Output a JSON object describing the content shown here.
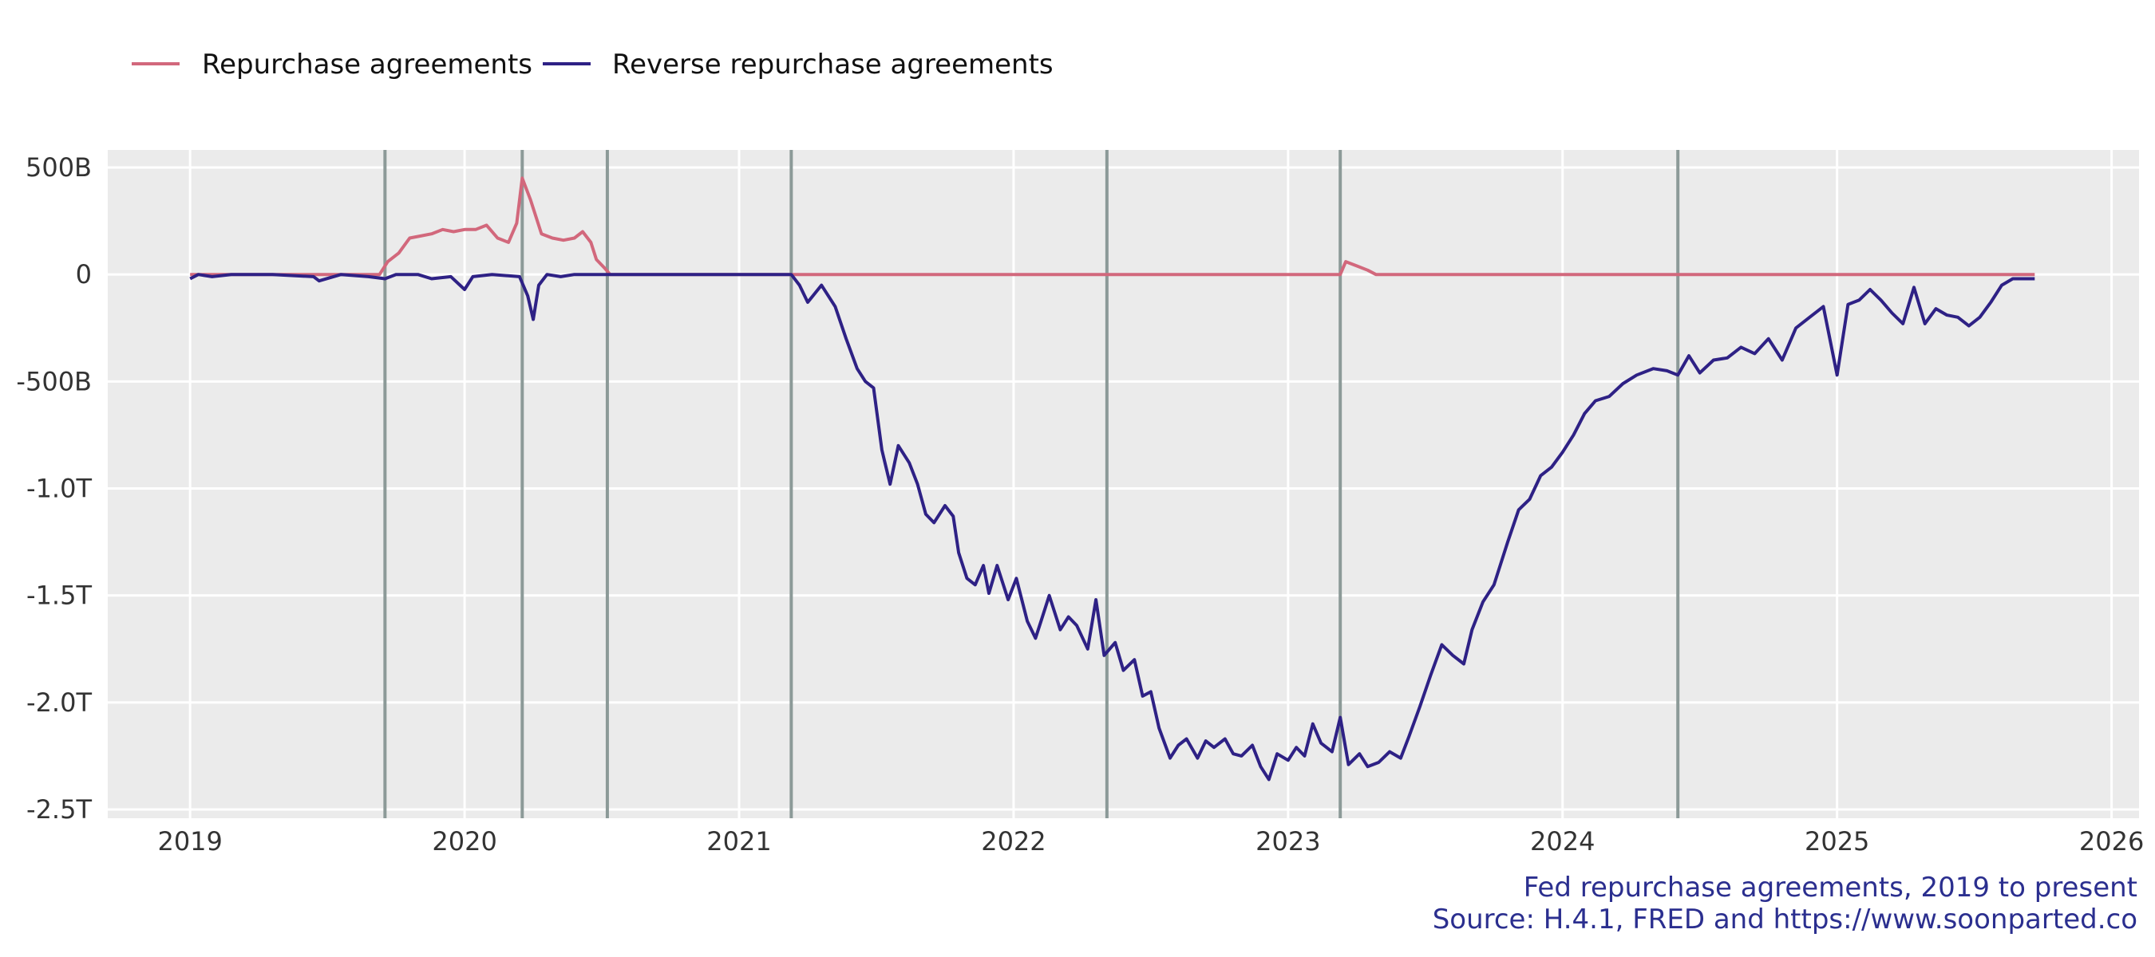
{
  "chart_data": {
    "type": "line",
    "title": "",
    "xlabel": "",
    "ylabel": "",
    "x_unit": "year",
    "xlim": [
      2018.7,
      2026.1
    ],
    "ylim": [
      -2.5,
      0.5
    ],
    "y_unit": "trillions of dollars",
    "x_ticks": [
      2019,
      2020,
      2021,
      2022,
      2023,
      2024,
      2025,
      2026
    ],
    "x_tick_labels": [
      "2019",
      "2020",
      "2021",
      "2022",
      "2023",
      "2024",
      "2025",
      "2026"
    ],
    "y_ticks": [
      0.5,
      0,
      -0.5,
      -1.0,
      -1.5,
      -2.0,
      -2.5
    ],
    "y_tick_labels": [
      "500B",
      "0",
      "-500B",
      "-1.0T",
      "-1.5T",
      "-2.0T",
      "-2.5T"
    ],
    "grid": true,
    "legend_position": "top-left",
    "event_lines": [
      2019.71,
      2020.21,
      2020.52,
      2021.19,
      2022.34,
      2023.19,
      2024.42
    ],
    "series": [
      {
        "name": "Repurchase agreements",
        "color": "#d2687c",
        "points": [
          [
            2019.0,
            0
          ],
          [
            2019.69,
            0
          ],
          [
            2019.72,
            0.06
          ],
          [
            2019.76,
            0.1
          ],
          [
            2019.8,
            0.17
          ],
          [
            2019.84,
            0.18
          ],
          [
            2019.88,
            0.19
          ],
          [
            2019.92,
            0.21
          ],
          [
            2019.96,
            0.2
          ],
          [
            2020.0,
            0.21
          ],
          [
            2020.04,
            0.21
          ],
          [
            2020.08,
            0.23
          ],
          [
            2020.12,
            0.17
          ],
          [
            2020.16,
            0.15
          ],
          [
            2020.19,
            0.24
          ],
          [
            2020.21,
            0.45
          ],
          [
            2020.24,
            0.35
          ],
          [
            2020.28,
            0.19
          ],
          [
            2020.32,
            0.17
          ],
          [
            2020.36,
            0.16
          ],
          [
            2020.4,
            0.17
          ],
          [
            2020.43,
            0.2
          ],
          [
            2020.46,
            0.15
          ],
          [
            2020.48,
            0.07
          ],
          [
            2020.51,
            0.03
          ],
          [
            2020.53,
            0
          ],
          [
            2023.19,
            0
          ],
          [
            2023.21,
            0.06
          ],
          [
            2023.25,
            0.04
          ],
          [
            2023.29,
            0.02
          ],
          [
            2023.32,
            0
          ],
          [
            2025.72,
            0
          ]
        ]
      },
      {
        "name": "Reverse repurchase agreements",
        "color": "#2e2185",
        "points": [
          [
            2019.0,
            -0.02
          ],
          [
            2019.03,
            0
          ],
          [
            2019.08,
            -0.01
          ],
          [
            2019.15,
            0
          ],
          [
            2019.3,
            0
          ],
          [
            2019.45,
            -0.01
          ],
          [
            2019.47,
            -0.03
          ],
          [
            2019.55,
            0
          ],
          [
            2019.65,
            -0.01
          ],
          [
            2019.71,
            -0.02
          ],
          [
            2019.75,
            0
          ],
          [
            2019.83,
            0
          ],
          [
            2019.88,
            -0.02
          ],
          [
            2019.95,
            -0.01
          ],
          [
            2020.0,
            -0.07
          ],
          [
            2020.03,
            -0.01
          ],
          [
            2020.1,
            0
          ],
          [
            2020.2,
            -0.01
          ],
          [
            2020.23,
            -0.1
          ],
          [
            2020.25,
            -0.21
          ],
          [
            2020.27,
            -0.05
          ],
          [
            2020.3,
            0
          ],
          [
            2020.35,
            -0.01
          ],
          [
            2020.4,
            0
          ],
          [
            2020.55,
            0
          ],
          [
            2021.0,
            0
          ],
          [
            2021.19,
            0
          ],
          [
            2021.22,
            -0.05
          ],
          [
            2021.25,
            -0.13
          ],
          [
            2021.3,
            -0.05
          ],
          [
            2021.35,
            -0.15
          ],
          [
            2021.39,
            -0.3
          ],
          [
            2021.43,
            -0.44
          ],
          [
            2021.46,
            -0.5
          ],
          [
            2021.49,
            -0.53
          ],
          [
            2021.52,
            -0.82
          ],
          [
            2021.55,
            -0.98
          ],
          [
            2021.58,
            -0.8
          ],
          [
            2021.62,
            -0.88
          ],
          [
            2021.65,
            -0.98
          ],
          [
            2021.68,
            -1.12
          ],
          [
            2021.71,
            -1.16
          ],
          [
            2021.75,
            -1.08
          ],
          [
            2021.78,
            -1.13
          ],
          [
            2021.8,
            -1.3
          ],
          [
            2021.83,
            -1.42
          ],
          [
            2021.86,
            -1.45
          ],
          [
            2021.89,
            -1.36
          ],
          [
            2021.91,
            -1.49
          ],
          [
            2021.94,
            -1.36
          ],
          [
            2021.98,
            -1.52
          ],
          [
            2022.01,
            -1.42
          ],
          [
            2022.05,
            -1.62
          ],
          [
            2022.08,
            -1.7
          ],
          [
            2022.1,
            -1.62
          ],
          [
            2022.13,
            -1.5
          ],
          [
            2022.17,
            -1.66
          ],
          [
            2022.2,
            -1.6
          ],
          [
            2022.23,
            -1.64
          ],
          [
            2022.27,
            -1.75
          ],
          [
            2022.3,
            -1.52
          ],
          [
            2022.33,
            -1.78
          ],
          [
            2022.37,
            -1.72
          ],
          [
            2022.4,
            -1.85
          ],
          [
            2022.44,
            -1.8
          ],
          [
            2022.47,
            -1.97
          ],
          [
            2022.5,
            -1.95
          ],
          [
            2022.53,
            -2.12
          ],
          [
            2022.57,
            -2.26
          ],
          [
            2022.6,
            -2.2
          ],
          [
            2022.63,
            -2.17
          ],
          [
            2022.67,
            -2.26
          ],
          [
            2022.7,
            -2.18
          ],
          [
            2022.73,
            -2.21
          ],
          [
            2022.77,
            -2.17
          ],
          [
            2022.8,
            -2.24
          ],
          [
            2022.83,
            -2.25
          ],
          [
            2022.87,
            -2.2
          ],
          [
            2022.9,
            -2.3
          ],
          [
            2022.93,
            -2.36
          ],
          [
            2022.96,
            -2.24
          ],
          [
            2023.0,
            -2.27
          ],
          [
            2023.03,
            -2.21
          ],
          [
            2023.06,
            -2.25
          ],
          [
            2023.09,
            -2.1
          ],
          [
            2023.12,
            -2.19
          ],
          [
            2023.16,
            -2.23
          ],
          [
            2023.19,
            -2.07
          ],
          [
            2023.22,
            -2.29
          ],
          [
            2023.26,
            -2.24
          ],
          [
            2023.29,
            -2.3
          ],
          [
            2023.33,
            -2.28
          ],
          [
            2023.37,
            -2.23
          ],
          [
            2023.41,
            -2.26
          ],
          [
            2023.44,
            -2.16
          ],
          [
            2023.48,
            -2.02
          ],
          [
            2023.52,
            -1.87
          ],
          [
            2023.56,
            -1.73
          ],
          [
            2023.6,
            -1.78
          ],
          [
            2023.64,
            -1.82
          ],
          [
            2023.67,
            -1.66
          ],
          [
            2023.71,
            -1.53
          ],
          [
            2023.75,
            -1.45
          ],
          [
            2023.8,
            -1.25
          ],
          [
            2023.84,
            -1.1
          ],
          [
            2023.88,
            -1.05
          ],
          [
            2023.92,
            -0.94
          ],
          [
            2023.96,
            -0.9
          ],
          [
            2024.0,
            -0.83
          ],
          [
            2024.04,
            -0.75
          ],
          [
            2024.08,
            -0.65
          ],
          [
            2024.12,
            -0.59
          ],
          [
            2024.17,
            -0.57
          ],
          [
            2024.22,
            -0.51
          ],
          [
            2024.27,
            -0.47
          ],
          [
            2024.33,
            -0.44
          ],
          [
            2024.38,
            -0.45
          ],
          [
            2024.42,
            -0.47
          ],
          [
            2024.46,
            -0.38
          ],
          [
            2024.5,
            -0.46
          ],
          [
            2024.55,
            -0.4
          ],
          [
            2024.6,
            -0.39
          ],
          [
            2024.65,
            -0.34
          ],
          [
            2024.7,
            -0.37
          ],
          [
            2024.75,
            -0.3
          ],
          [
            2024.8,
            -0.4
          ],
          [
            2024.85,
            -0.25
          ],
          [
            2024.9,
            -0.2
          ],
          [
            2024.95,
            -0.15
          ],
          [
            2025.0,
            -0.47
          ],
          [
            2025.04,
            -0.14
          ],
          [
            2025.08,
            -0.12
          ],
          [
            2025.12,
            -0.07
          ],
          [
            2025.16,
            -0.12
          ],
          [
            2025.2,
            -0.18
          ],
          [
            2025.24,
            -0.23
          ],
          [
            2025.28,
            -0.06
          ],
          [
            2025.32,
            -0.23
          ],
          [
            2025.36,
            -0.16
          ],
          [
            2025.4,
            -0.19
          ],
          [
            2025.44,
            -0.2
          ],
          [
            2025.48,
            -0.24
          ],
          [
            2025.52,
            -0.2
          ],
          [
            2025.56,
            -0.13
          ],
          [
            2025.6,
            -0.05
          ],
          [
            2025.64,
            -0.02
          ],
          [
            2025.68,
            -0.02
          ],
          [
            2025.72,
            -0.02
          ]
        ]
      }
    ]
  },
  "caption": {
    "line1": "Fed repurchase agreements, 2019 to present",
    "line2": "Source: H.4.1, FRED and https://www.soonparted.co"
  }
}
